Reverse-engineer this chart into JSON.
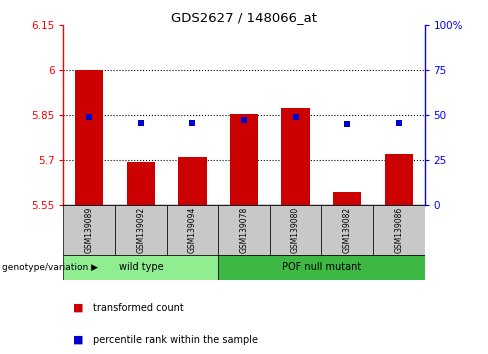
{
  "title": "GDS2627 / 148066_at",
  "samples": [
    "GSM139089",
    "GSM139092",
    "GSM139094",
    "GSM139078",
    "GSM139080",
    "GSM139082",
    "GSM139086"
  ],
  "red_bar_tops": [
    6.0,
    5.695,
    5.71,
    5.852,
    5.875,
    5.595,
    5.72
  ],
  "blue_square_vals": [
    5.845,
    5.825,
    5.825,
    5.835,
    5.845,
    5.82,
    5.825
  ],
  "ylim_left": [
    5.55,
    6.15
  ],
  "ylim_right": [
    0,
    100
  ],
  "yticks_left": [
    5.55,
    5.7,
    5.85,
    6.0,
    6.15
  ],
  "yticks_right": [
    0,
    25,
    50,
    75,
    100
  ],
  "ytick_labels_left": [
    "5.55",
    "5.7",
    "5.85",
    "6",
    "6.15"
  ],
  "ytick_labels_right": [
    "0",
    "25",
    "50",
    "75",
    "100%"
  ],
  "dotted_lines": [
    5.7,
    5.85,
    6.0
  ],
  "groups": [
    {
      "label": "wild type",
      "indices": [
        0,
        1,
        2
      ],
      "color": "#90EE90"
    },
    {
      "label": "POF null mutant",
      "indices": [
        3,
        4,
        5,
        6
      ],
      "color": "#3CB843"
    }
  ],
  "bar_width": 0.55,
  "bar_color": "#CC0000",
  "square_color": "#0000CC",
  "base_value": 5.55,
  "sample_box_color": "#C8C8C8",
  "legend_red_label": "transformed count",
  "legend_blue_label": "percentile rank within the sample",
  "genotype_label": "genotype/variation"
}
